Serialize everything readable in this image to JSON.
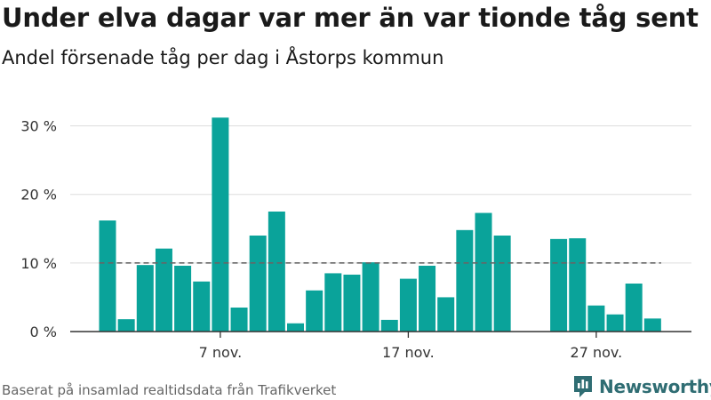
{
  "title": "Under elva dagar var mer än var tionde tåg sent",
  "subtitle": "Andel försenade tåg per dag i Åstorps kommun",
  "source": "Baserat på insamlad realtidsdata från Trafikverket",
  "brand": "Newsworthy",
  "colors": {
    "bar": "#0aa39a",
    "grid": "#dddddd",
    "axis": "#333333",
    "reference": "#666666",
    "brand": "#2f6d73"
  },
  "chart_data": {
    "type": "bar",
    "x": [
      1,
      2,
      3,
      4,
      5,
      6,
      7,
      8,
      9,
      10,
      11,
      12,
      13,
      14,
      15,
      16,
      17,
      18,
      19,
      20,
      21,
      22,
      23,
      24,
      25,
      26,
      27,
      28,
      29,
      30
    ],
    "values": [
      16.2,
      1.8,
      9.7,
      12.1,
      9.6,
      7.3,
      31.2,
      3.5,
      14.0,
      17.5,
      1.2,
      6.0,
      8.5,
      8.3,
      10.1,
      1.7,
      7.7,
      9.6,
      5.0,
      14.8,
      17.3,
      14.0,
      null,
      null,
      13.5,
      13.6,
      3.8,
      2.5,
      7.0,
      1.9
    ],
    "x_ticks": [
      {
        "x": 7,
        "label": "7 nov."
      },
      {
        "x": 17,
        "label": "17 nov."
      },
      {
        "x": 27,
        "label": "27 nov."
      }
    ],
    "y_ticks": [
      {
        "value": 0,
        "label": "0 %"
      },
      {
        "value": 10,
        "label": "10 %"
      },
      {
        "value": 20,
        "label": "20 %"
      },
      {
        "value": 30,
        "label": "30 %"
      }
    ],
    "ylim": [
      0,
      30
    ],
    "reference_line": 10,
    "grid": true,
    "legend": "none"
  }
}
